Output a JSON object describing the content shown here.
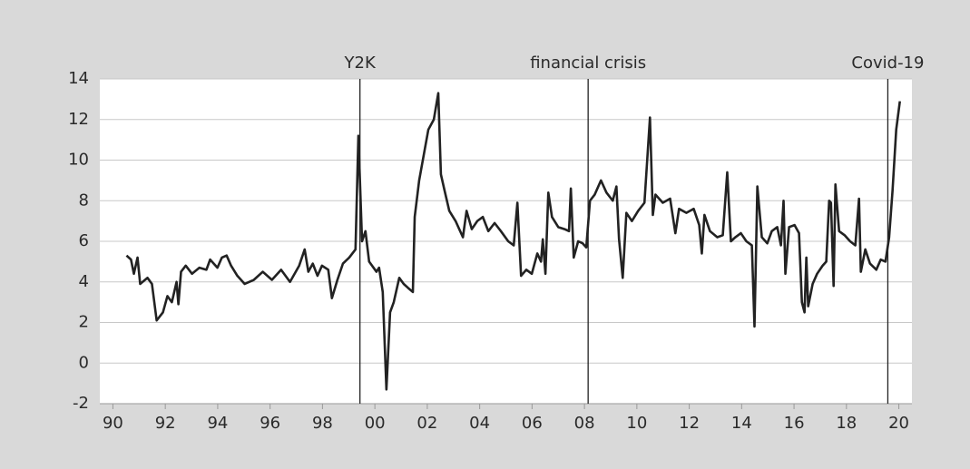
{
  "chart_data": {
    "type": "line",
    "x": [
      1990.52,
      1990.69,
      1990.8,
      1990.94,
      1991.04,
      1991.32,
      1991.49,
      1991.67,
      1991.91,
      1992.08,
      1992.25,
      1992.43,
      1992.5,
      1992.6,
      1992.78,
      1993.02,
      1993.3,
      1993.57,
      1993.71,
      1993.99,
      1994.16,
      1994.34,
      1994.51,
      1994.75,
      1995.03,
      1995.38,
      1995.72,
      1996.07,
      1996.42,
      1996.76,
      1997.11,
      1997.32,
      1997.46,
      1997.63,
      1997.81,
      1997.98,
      1998.22,
      1998.36,
      1998.57,
      1998.78,
      1999.02,
      1999.26,
      1999.37,
      1999.51,
      1999.64,
      1999.78,
      2000.06,
      2000.16,
      2000.3,
      2000.44,
      2000.58,
      2000.72,
      2000.93,
      2001.1,
      2001.27,
      2001.45,
      2001.52,
      2001.69,
      2001.9,
      2002.04,
      2002.25,
      2002.42,
      2002.52,
      2002.66,
      2002.84,
      2003.08,
      2003.36,
      2003.5,
      2003.7,
      2003.91,
      2004.12,
      2004.33,
      2004.57,
      2004.81,
      2005.09,
      2005.3,
      2005.44,
      2005.58,
      2005.78,
      2005.99,
      2006.2,
      2006.34,
      2006.41,
      2006.51,
      2006.62,
      2006.76,
      2007.0,
      2007.24,
      2007.41,
      2007.48,
      2007.59,
      2007.76,
      2007.93,
      2008.07,
      2008.21,
      2008.39,
      2008.63,
      2008.84,
      2009.08,
      2009.22,
      2009.32,
      2009.46,
      2009.6,
      2009.81,
      2010.05,
      2010.29,
      2010.5,
      2010.61,
      2010.71,
      2010.99,
      2011.27,
      2011.47,
      2011.61,
      2011.89,
      2012.17,
      2012.38,
      2012.48,
      2012.58,
      2012.79,
      2013.07,
      2013.28,
      2013.45,
      2013.59,
      2013.76,
      2013.97,
      2014.18,
      2014.39,
      2014.49,
      2014.6,
      2014.77,
      2014.98,
      2015.15,
      2015.36,
      2015.5,
      2015.6,
      2015.67,
      2015.81,
      2016.02,
      2016.19,
      2016.3,
      2016.4,
      2016.47,
      2016.54,
      2016.71,
      2016.88,
      2017.09,
      2017.23,
      2017.34,
      2017.41,
      2017.51,
      2017.58,
      2017.72,
      2017.93,
      2018.14,
      2018.34,
      2018.48,
      2018.55,
      2018.72,
      2018.9,
      2019.14,
      2019.31,
      2019.49,
      2019.63,
      2019.76,
      2019.9,
      2020.04
    ],
    "values": [
      5.3,
      5.1,
      4.4,
      5.2,
      3.9,
      4.2,
      3.9,
      2.1,
      2.5,
      3.3,
      3.0,
      4.0,
      2.9,
      4.5,
      4.8,
      4.4,
      4.7,
      4.6,
      5.1,
      4.7,
      5.2,
      5.3,
      4.8,
      4.3,
      3.9,
      4.1,
      4.5,
      4.1,
      4.6,
      4.0,
      4.8,
      5.6,
      4.5,
      4.9,
      4.3,
      4.8,
      4.6,
      3.2,
      4.1,
      4.9,
      5.2,
      5.6,
      11.2,
      6.0,
      6.5,
      5.0,
      4.5,
      4.7,
      3.5,
      -1.3,
      2.5,
      3.0,
      4.2,
      3.9,
      3.7,
      3.5,
      7.2,
      9.0,
      10.5,
      11.5,
      12.0,
      13.3,
      9.3,
      8.5,
      7.5,
      7.0,
      6.2,
      7.5,
      6.6,
      7.0,
      7.2,
      6.5,
      6.9,
      6.5,
      6.0,
      5.8,
      7.9,
      4.3,
      4.6,
      4.4,
      5.4,
      5.0,
      6.1,
      4.4,
      8.4,
      7.2,
      6.7,
      6.6,
      6.5,
      8.6,
      5.2,
      6.0,
      5.9,
      5.7,
      8.0,
      8.3,
      9.0,
      8.4,
      8.0,
      8.7,
      6.1,
      4.2,
      7.4,
      7.0,
      7.5,
      7.9,
      12.1,
      7.3,
      8.3,
      7.9,
      8.1,
      6.4,
      7.6,
      7.4,
      7.6,
      6.8,
      5.4,
      7.3,
      6.5,
      6.2,
      6.3,
      9.4,
      6.0,
      6.2,
      6.4,
      6.0,
      5.8,
      1.8,
      8.7,
      6.2,
      5.9,
      6.5,
      6.7,
      5.8,
      8.0,
      4.4,
      6.7,
      6.8,
      6.4,
      3.0,
      2.5,
      5.2,
      2.8,
      3.9,
      4.4,
      4.8,
      5.0,
      8.0,
      7.9,
      3.8,
      8.8,
      6.5,
      6.3,
      6.0,
      5.8,
      8.1,
      4.5,
      5.6,
      4.9,
      4.6,
      5.1,
      5.0,
      6.2,
      8.5,
      11.5,
      12.9
    ],
    "color": "#222222",
    "xlim": [
      1989.5,
      2020.5
    ],
    "ylim": [
      -2,
      14
    ],
    "xticks": [
      {
        "value": 1990,
        "label": "90"
      },
      {
        "value": 1992,
        "label": "92"
      },
      {
        "value": 1994,
        "label": "94"
      },
      {
        "value": 1996,
        "label": "96"
      },
      {
        "value": 1998,
        "label": "98"
      },
      {
        "value": 2000,
        "label": "00"
      },
      {
        "value": 2002,
        "label": "02"
      },
      {
        "value": 2004,
        "label": "04"
      },
      {
        "value": 2006,
        "label": "06"
      },
      {
        "value": 2008,
        "label": "08"
      },
      {
        "value": 2010,
        "label": "10"
      },
      {
        "value": 2012,
        "label": "12"
      },
      {
        "value": 2014,
        "label": "14"
      },
      {
        "value": 2016,
        "label": "16"
      },
      {
        "value": 2018,
        "label": "18"
      },
      {
        "value": 2020,
        "label": "20"
      }
    ],
    "yticks": [
      -2,
      0,
      2,
      4,
      6,
      8,
      10,
      12,
      14
    ],
    "grid": true,
    "annotations": [
      {
        "x": 1999.43,
        "label": "Y2K"
      },
      {
        "x": 2008.14,
        "label": "financial crisis"
      },
      {
        "x": 2019.58,
        "label": "Covid-19"
      }
    ]
  }
}
